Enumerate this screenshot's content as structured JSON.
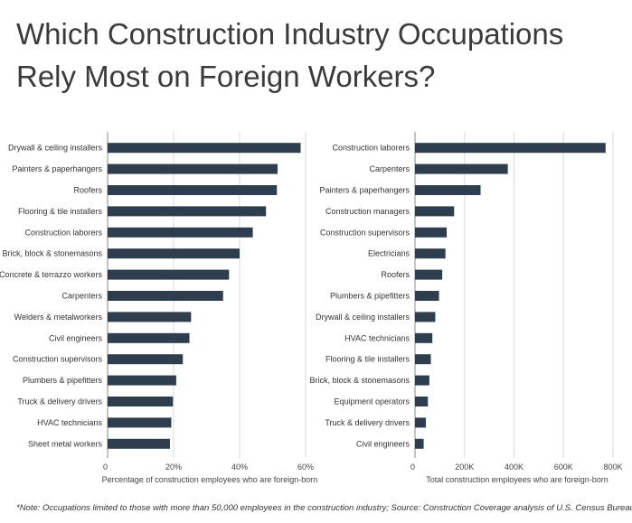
{
  "title": "Which Construction Industry Occupations Rely Most on Foreign Workers?",
  "note": "*Note: Occupations limited to those with more than 50,000 employees in the construction industry;  Source: Construction Coverage analysis of U.S. Census Bureau data",
  "colors": {
    "bar": "#2f3e4e",
    "grid": "#d9d9d9",
    "axis": "#888888"
  },
  "chart_data": [
    {
      "type": "bar",
      "orientation": "horizontal",
      "xlabel": "Percentage of construction employees who are foreign-born",
      "ylabel": "",
      "xlim": [
        0,
        0.6
      ],
      "ticks": [
        0,
        0.2,
        0.4,
        0.6
      ],
      "tick_labels": [
        "0",
        "20%",
        "40%",
        "60%"
      ],
      "grid": true,
      "categories": [
        "Drywall & ceiling installers",
        "Painters & paperhangers",
        "Roofers",
        "Flooring & tile installers",
        "Construction laborers",
        "Brick, block & stonemasons",
        "Concrete & terrazzo workers",
        "Carpenters",
        "Welders & metalworkers",
        "Civil engineers",
        "Construction supervisors",
        "Plumbers & pipefitters",
        "Truck & delivery drivers",
        "HVAC technicians",
        "Sheet metal workers"
      ],
      "values": [
        0.585,
        0.515,
        0.513,
        0.48,
        0.44,
        0.4,
        0.368,
        0.35,
        0.253,
        0.248,
        0.228,
        0.208,
        0.198,
        0.193,
        0.189
      ]
    },
    {
      "type": "bar",
      "orientation": "horizontal",
      "xlabel": "Total construction employees who are foreign-born",
      "ylabel": "",
      "xlim": [
        0,
        800000
      ],
      "ticks": [
        0,
        200000,
        400000,
        600000,
        800000
      ],
      "tick_labels": [
        "0",
        "200K",
        "400K",
        "600K",
        "800K"
      ],
      "grid": true,
      "categories": [
        "Construction laborers",
        "Carpenters",
        "Painters & paperhangers",
        "Construction managers",
        "Construction supervisors",
        "Electricians",
        "Roofers",
        "Plumbers & pipefitters",
        "Drywall & ceiling installers",
        "HVAC technicians",
        "Flooring & tile installers",
        "Brick, block & stonemasons",
        "Equipment operators",
        "Truck & delivery drivers",
        "Civil engineers"
      ],
      "values": [
        770000,
        375000,
        265000,
        158000,
        128000,
        123000,
        110000,
        97000,
        82000,
        70000,
        64000,
        58000,
        52000,
        44000,
        35000
      ]
    }
  ]
}
